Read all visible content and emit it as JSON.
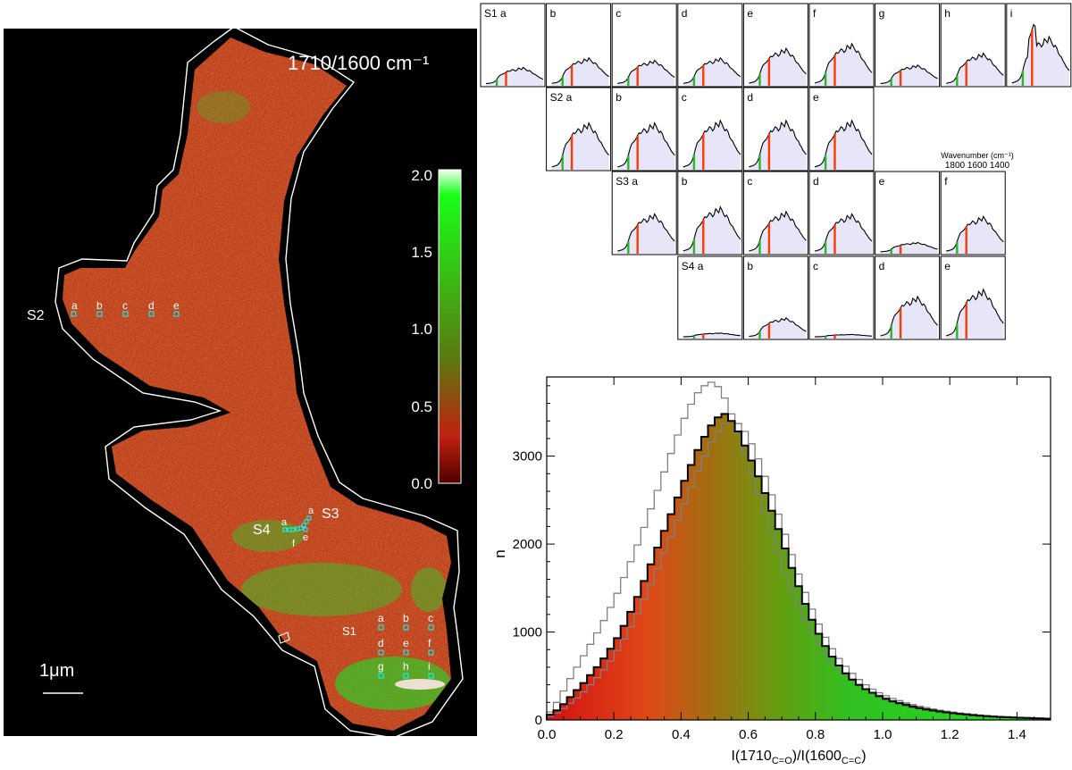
{
  "map": {
    "title": "1710/1600 cm⁻¹",
    "scale_bar_label": "1μm",
    "colorbar": {
      "ticks": [
        "2.0",
        "1.5",
        "1.0",
        "0.5",
        "0.0"
      ],
      "colors": {
        "top": "#f0fff0",
        "high": "#18ff18",
        "mid": "#5a7a10",
        "low": "#c02010",
        "bottom": "#500000"
      }
    },
    "site_groups": [
      {
        "name": "S1",
        "points": [
          "a",
          "b",
          "c",
          "d",
          "e",
          "f",
          "g",
          "h",
          "i"
        ]
      },
      {
        "name": "S2",
        "points": [
          "a",
          "b",
          "c",
          "d",
          "e"
        ]
      },
      {
        "name": "S3",
        "points": [
          "a",
          "b",
          "c",
          "d",
          "e",
          "f"
        ]
      },
      {
        "name": "S4",
        "points": [
          "a",
          "b",
          "c",
          "d",
          "e"
        ]
      }
    ],
    "colors": {
      "background": "#000000",
      "outline": "#ffffff",
      "marker": "#00ffff",
      "tissue": "#b83a18",
      "green": "#2ad22a"
    }
  },
  "spectra": {
    "axis_label": "Wavenumber (cm⁻¹)",
    "axis_ticks": [
      "1800",
      "1600",
      "1400"
    ],
    "rows": [
      {
        "group": "S1",
        "labels": [
          "S1 a",
          "b",
          "c",
          "d",
          "e",
          "f",
          "g",
          "h",
          "i"
        ],
        "scales": [
          0.35,
          0.55,
          0.5,
          0.55,
          0.75,
          0.85,
          0.4,
          0.65,
          1.0
        ]
      },
      {
        "group": "S2",
        "labels": [
          "S2 a",
          "b",
          "c",
          "d",
          "e"
        ],
        "scales": [
          0.95,
          0.95,
          1.0,
          1.0,
          1.0
        ]
      },
      {
        "group": "S3",
        "labels": [
          "S3 a",
          "b",
          "c",
          "d",
          "e",
          "f"
        ],
        "scales": [
          0.8,
          0.95,
          0.85,
          0.8,
          0.2,
          0.75
        ]
      },
      {
        "group": "S4",
        "labels": [
          "S4 a",
          "b",
          "c",
          "d",
          "e"
        ],
        "scales": [
          0.08,
          0.4,
          0.05,
          0.85,
          1.0
        ]
      }
    ],
    "colors": {
      "fill": "#e6e6f8",
      "line": "#000000",
      "green_marker": "#2ab52a",
      "red_marker": "#ff3a00"
    }
  },
  "chart_data": {
    "type": "bar",
    "xlabel": "I(1710C=O)/I(1600C=C)",
    "xlabel_parts": {
      "main1": "I(1710",
      "sub1": "C=O",
      "main2": ")/I(1600",
      "sub2": "C=C",
      "end": ")"
    },
    "ylabel": "n",
    "xlim": [
      0.0,
      1.5
    ],
    "ylim": [
      0,
      3900
    ],
    "xticks": [
      "0.0",
      "0.2",
      "0.4",
      "0.6",
      "0.8",
      "1.0",
      "1.2",
      "1.4"
    ],
    "yticks": [
      "0",
      "1000",
      "2000",
      "3000"
    ],
    "bin_width": 0.02,
    "series": [
      {
        "role": "main",
        "color": "#000000",
        "x": [
          0.0,
          0.02,
          0.04,
          0.06,
          0.08,
          0.1,
          0.12,
          0.14,
          0.16,
          0.18,
          0.2,
          0.22,
          0.24,
          0.26,
          0.28,
          0.3,
          0.32,
          0.34,
          0.36,
          0.38,
          0.4,
          0.42,
          0.44,
          0.46,
          0.48,
          0.5,
          0.52,
          0.54,
          0.56,
          0.58,
          0.6,
          0.62,
          0.64,
          0.66,
          0.68,
          0.7,
          0.72,
          0.74,
          0.76,
          0.78,
          0.8,
          0.82,
          0.84,
          0.86,
          0.88,
          0.9,
          0.92,
          0.94,
          0.96,
          0.98,
          1.0,
          1.02,
          1.04,
          1.06,
          1.08,
          1.1,
          1.12,
          1.14,
          1.16,
          1.18,
          1.2,
          1.22,
          1.24,
          1.26,
          1.28,
          1.3,
          1.32,
          1.34,
          1.36,
          1.38,
          1.4,
          1.42,
          1.44,
          1.46,
          1.48
        ],
        "values": [
          60,
          110,
          180,
          260,
          340,
          420,
          510,
          600,
          700,
          810,
          930,
          1070,
          1230,
          1400,
          1580,
          1770,
          1960,
          2150,
          2340,
          2530,
          2720,
          2900,
          3070,
          3220,
          3350,
          3440,
          3480,
          3400,
          3280,
          3120,
          2950,
          2770,
          2580,
          2380,
          2170,
          1950,
          1730,
          1520,
          1320,
          1140,
          980,
          840,
          720,
          620,
          530,
          460,
          400,
          350,
          310,
          270,
          240,
          210,
          190,
          170,
          150,
          135,
          120,
          108,
          96,
          86,
          77,
          69,
          62,
          55,
          49,
          44,
          39,
          35,
          31,
          28,
          25,
          22,
          19,
          17,
          15
        ]
      },
      {
        "role": "comparison-1",
        "color": "#808080",
        "x": [
          0.0,
          0.02,
          0.04,
          0.06,
          0.08,
          0.1,
          0.12,
          0.14,
          0.16,
          0.18,
          0.2,
          0.22,
          0.24,
          0.26,
          0.28,
          0.3,
          0.32,
          0.34,
          0.36,
          0.38,
          0.4,
          0.42,
          0.44,
          0.46,
          0.48,
          0.5,
          0.52,
          0.54,
          0.56,
          0.58,
          0.6,
          0.62,
          0.64,
          0.66,
          0.68,
          0.7,
          0.72,
          0.74,
          0.76,
          0.78,
          0.8,
          0.82,
          0.84,
          0.86,
          0.88,
          0.9,
          0.92,
          0.94,
          0.96,
          0.98,
          1.0,
          1.02,
          1.04,
          1.06,
          1.08,
          1.1,
          1.12,
          1.14,
          1.16,
          1.18,
          1.2,
          1.22,
          1.24,
          1.26,
          1.28,
          1.3,
          1.32,
          1.34,
          1.36,
          1.38,
          1.4,
          1.42,
          1.44,
          1.46,
          1.48
        ],
        "values": [
          90,
          200,
          330,
          470,
          600,
          730,
          860,
          990,
          1130,
          1280,
          1440,
          1620,
          1800,
          1990,
          2190,
          2400,
          2610,
          2820,
          3030,
          3240,
          3430,
          3590,
          3720,
          3800,
          3840,
          3790,
          3660,
          3480,
          3260,
          3030,
          2800,
          2570,
          2340,
          2110,
          1890,
          1680,
          1480,
          1300,
          1140,
          1000,
          870,
          760,
          660,
          580,
          510,
          450,
          400,
          350,
          310,
          280,
          250,
          220,
          200,
          180,
          160,
          144,
          128,
          115,
          103,
          92,
          82,
          74,
          66,
          59,
          53,
          47,
          42,
          38,
          34,
          30,
          27,
          24,
          21,
          19,
          17
        ]
      },
      {
        "role": "comparison-2",
        "color": "#808080",
        "x": [
          0.0,
          0.02,
          0.04,
          0.06,
          0.08,
          0.1,
          0.12,
          0.14,
          0.16,
          0.18,
          0.2,
          0.22,
          0.24,
          0.26,
          0.28,
          0.3,
          0.32,
          0.34,
          0.36,
          0.38,
          0.4,
          0.42,
          0.44,
          0.46,
          0.48,
          0.5,
          0.52,
          0.54,
          0.56,
          0.58,
          0.6,
          0.62,
          0.64,
          0.66,
          0.68,
          0.7,
          0.72,
          0.74,
          0.76,
          0.78,
          0.8,
          0.82,
          0.84,
          0.86,
          0.88,
          0.9,
          0.92,
          0.94,
          0.96,
          0.98,
          1.0,
          1.02,
          1.04,
          1.06,
          1.08,
          1.1,
          1.12,
          1.14,
          1.16,
          1.18,
          1.2,
          1.22,
          1.24,
          1.26,
          1.28,
          1.3,
          1.32,
          1.34,
          1.36,
          1.38,
          1.4,
          1.42,
          1.44,
          1.46,
          1.48
        ],
        "values": [
          40,
          80,
          130,
          190,
          250,
          320,
          400,
          480,
          570,
          670,
          790,
          920,
          1060,
          1210,
          1370,
          1540,
          1720,
          1900,
          2080,
          2270,
          2460,
          2650,
          2830,
          3000,
          3160,
          3280,
          3370,
          3400,
          3370,
          3280,
          3140,
          2970,
          2770,
          2560,
          2340,
          2110,
          1880,
          1660,
          1450,
          1260,
          1090,
          940,
          810,
          700,
          610,
          530,
          460,
          400,
          350,
          310,
          275,
          245,
          220,
          195,
          175,
          156,
          140,
          125,
          112,
          100,
          89,
          80,
          72,
          64,
          57,
          51,
          46,
          41,
          37,
          33,
          29,
          26,
          23,
          21,
          19
        ]
      }
    ]
  }
}
